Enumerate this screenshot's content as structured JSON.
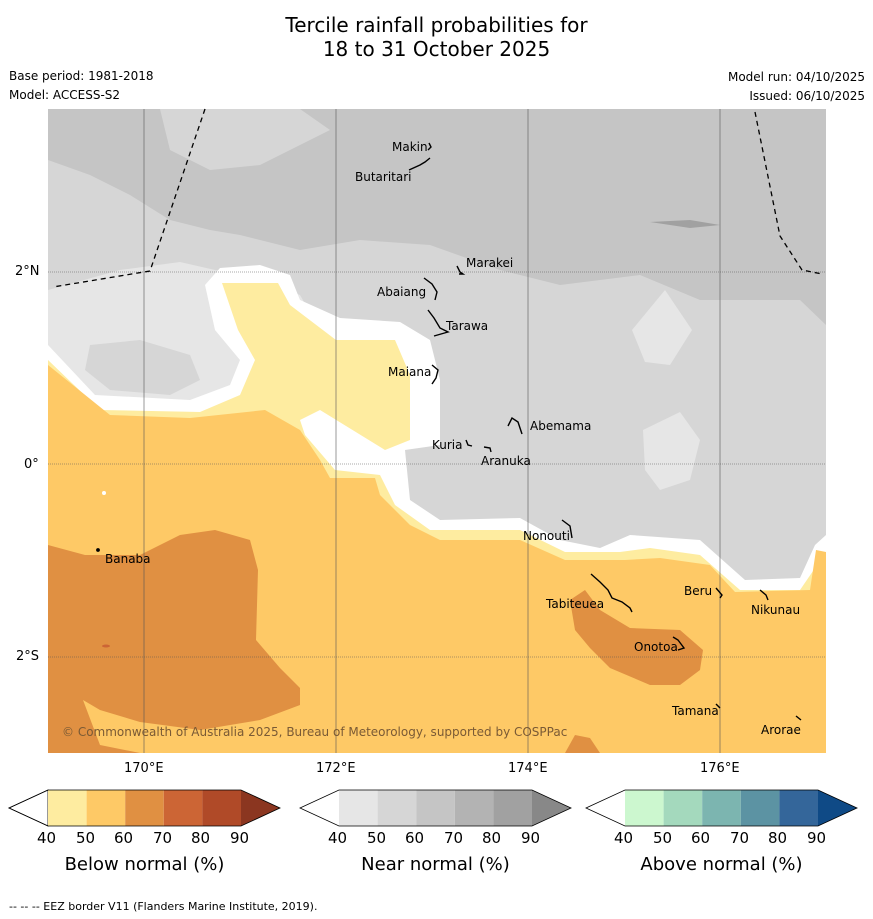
{
  "title_line1": "Tercile rainfall probabilities for",
  "title_line2": "18 to 31 October 2025",
  "meta": {
    "base_period": "Base period: 1981-2018",
    "model": "Model: ACCESS-S2",
    "model_run": "Model run: 04/10/2025",
    "issued": "Issued: 06/10/2025"
  },
  "axes": {
    "lat_ticks": [
      "2°N",
      "0°",
      "2°S"
    ],
    "lon_ticks": [
      "170°E",
      "172°E",
      "174°E",
      "176°E"
    ]
  },
  "places": [
    {
      "name": "Makin"
    },
    {
      "name": "Butaritari"
    },
    {
      "name": "Marakei"
    },
    {
      "name": "Abaiang"
    },
    {
      "name": "Tarawa"
    },
    {
      "name": "Maiana"
    },
    {
      "name": "Abemama"
    },
    {
      "name": "Kuria"
    },
    {
      "name": "Aranuka"
    },
    {
      "name": "Nonouti"
    },
    {
      "name": "Banaba"
    },
    {
      "name": "Tabiteuea"
    },
    {
      "name": "Beru"
    },
    {
      "name": "Nikunau"
    },
    {
      "name": "Onotoa"
    },
    {
      "name": "Tamana"
    },
    {
      "name": "Arorae"
    }
  ],
  "copyright": "© Commonwealth of Australia 2025, Bureau of Meteorology, supported by COSPPac",
  "colorbars": [
    {
      "label": "Below normal (%)",
      "ticks": [
        "40",
        "50",
        "60",
        "70",
        "80",
        "90"
      ],
      "colors": [
        "#ffffff",
        "#feeca0",
        "#fec966",
        "#e09042",
        "#cc6535",
        "#b04a28",
        "#8b3620"
      ]
    },
    {
      "label": "Near normal (%)",
      "ticks": [
        "40",
        "50",
        "60",
        "70",
        "80",
        "90"
      ],
      "colors": [
        "#ffffff",
        "#e6e6e6",
        "#d6d6d6",
        "#c5c5c5",
        "#b3b3b3",
        "#a1a1a1",
        "#888888"
      ]
    },
    {
      "label": "Above normal (%)",
      "ticks": [
        "40",
        "50",
        "60",
        "70",
        "80",
        "90"
      ],
      "colors": [
        "#ffffff",
        "#ccf7cf",
        "#a4d9bd",
        "#7cb5b0",
        "#5c93a3",
        "#34669a",
        "#0f4a86"
      ]
    }
  ],
  "footnote": "-- --  -- EEZ border V11 (Flanders Marine Institute, 2019)."
}
